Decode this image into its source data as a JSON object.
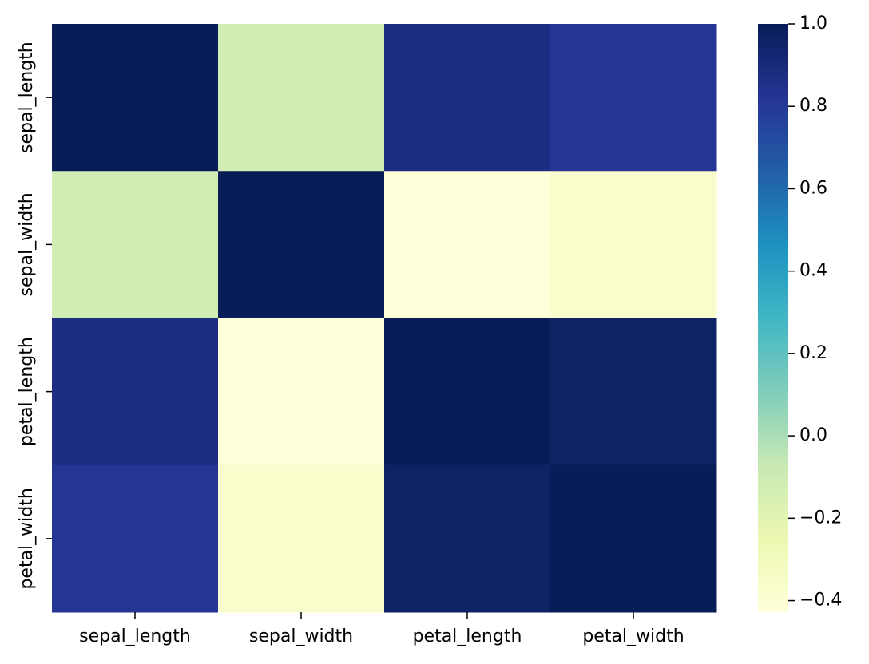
{
  "chart_data": {
    "type": "heatmap",
    "x_categories": [
      "sepal_length",
      "sepal_width",
      "petal_length",
      "petal_width"
    ],
    "y_categories": [
      "sepal_length",
      "sepal_width",
      "petal_length",
      "petal_width"
    ],
    "values": [
      [
        1.0,
        -0.118,
        0.872,
        0.818
      ],
      [
        -0.118,
        1.0,
        -0.428,
        -0.366
      ],
      [
        0.872,
        -0.428,
        1.0,
        0.963
      ],
      [
        0.818,
        -0.366,
        0.963,
        1.0
      ]
    ],
    "colormap": [
      "#ffffd9",
      "#edf8b1",
      "#c7e9b4",
      "#7fcdbb",
      "#41b6c4",
      "#1d91c0",
      "#225ea8",
      "#253494",
      "#081d58"
    ],
    "clim": [
      -0.428,
      1.0
    ],
    "cticks": [
      {
        "value": -0.4,
        "label": "−0.4"
      },
      {
        "value": -0.2,
        "label": "−0.2"
      },
      {
        "value": 0,
        "label": "0.0"
      },
      0.2,
      0.4,
      0.6,
      0.8,
      {
        "value": 1,
        "label": "1.0"
      }
    ]
  }
}
